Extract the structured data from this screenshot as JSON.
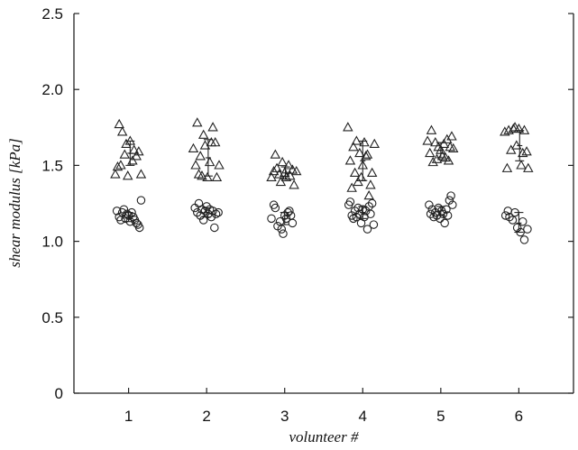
{
  "chart_data": {
    "type": "scatter",
    "xlabel": "volunteer #",
    "ylabel": "shear modulus [kPa]",
    "xlim": [
      0.3,
      6.7
    ],
    "ylim": [
      0,
      2.5
    ],
    "x_ticks": [
      1,
      2,
      3,
      4,
      5,
      6
    ],
    "y_ticks": [
      {
        "value": 0,
        "label": "0"
      },
      {
        "value": 0.5,
        "label": "0.5"
      },
      {
        "value": 1.0,
        "label": "1.0"
      },
      {
        "value": 1.5,
        "label": "1.5"
      },
      {
        "value": 2.0,
        "label": "2.0"
      },
      {
        "value": 2.5,
        "label": "2.5"
      }
    ],
    "grid": false,
    "series": [
      {
        "marker": "triangle",
        "points": [
          {
            "x": 0.83,
            "y": 1.44
          },
          {
            "x": 0.86,
            "y": 1.49
          },
          {
            "x": 0.88,
            "y": 1.77
          },
          {
            "x": 0.9,
            "y": 1.5
          },
          {
            "x": 0.92,
            "y": 1.72
          },
          {
            "x": 0.95,
            "y": 1.57
          },
          {
            "x": 0.97,
            "y": 1.64
          },
          {
            "x": 0.99,
            "y": 1.43
          },
          {
            "x": 1.02,
            "y": 1.66
          },
          {
            "x": 1.05,
            "y": 1.53
          },
          {
            "x": 1.07,
            "y": 1.6
          },
          {
            "x": 1.1,
            "y": 1.56
          },
          {
            "x": 1.13,
            "y": 1.59
          },
          {
            "x": 1.16,
            "y": 1.44
          },
          {
            "x": 1.83,
            "y": 1.61
          },
          {
            "x": 1.86,
            "y": 1.5
          },
          {
            "x": 1.88,
            "y": 1.78
          },
          {
            "x": 1.9,
            "y": 1.44
          },
          {
            "x": 1.92,
            "y": 1.56
          },
          {
            "x": 1.94,
            "y": 1.43
          },
          {
            "x": 1.96,
            "y": 1.7
          },
          {
            "x": 1.98,
            "y": 1.63
          },
          {
            "x": 2.01,
            "y": 1.42
          },
          {
            "x": 2.04,
            "y": 1.52
          },
          {
            "x": 2.06,
            "y": 1.65
          },
          {
            "x": 2.08,
            "y": 1.75
          },
          {
            "x": 2.11,
            "y": 1.65
          },
          {
            "x": 2.13,
            "y": 1.42
          },
          {
            "x": 2.16,
            "y": 1.5
          },
          {
            "x": 2.83,
            "y": 1.42
          },
          {
            "x": 2.86,
            "y": 1.46
          },
          {
            "x": 2.88,
            "y": 1.57
          },
          {
            "x": 2.9,
            "y": 1.48
          },
          {
            "x": 2.93,
            "y": 1.44
          },
          {
            "x": 2.95,
            "y": 1.39
          },
          {
            "x": 2.97,
            "y": 1.52
          },
          {
            "x": 3.0,
            "y": 1.45
          },
          {
            "x": 3.02,
            "y": 1.42
          },
          {
            "x": 3.05,
            "y": 1.5
          },
          {
            "x": 3.07,
            "y": 1.43
          },
          {
            "x": 3.1,
            "y": 1.47
          },
          {
            "x": 3.12,
            "y": 1.37
          },
          {
            "x": 3.15,
            "y": 1.46
          },
          {
            "x": 3.81,
            "y": 1.75
          },
          {
            "x": 3.84,
            "y": 1.53
          },
          {
            "x": 3.86,
            "y": 1.35
          },
          {
            "x": 3.88,
            "y": 1.62
          },
          {
            "x": 3.9,
            "y": 1.45
          },
          {
            "x": 3.92,
            "y": 1.66
          },
          {
            "x": 3.94,
            "y": 1.39
          },
          {
            "x": 3.96,
            "y": 1.58
          },
          {
            "x": 3.98,
            "y": 1.42
          },
          {
            "x": 4.0,
            "y": 1.5
          },
          {
            "x": 4.02,
            "y": 1.65
          },
          {
            "x": 4.04,
            "y": 1.56
          },
          {
            "x": 4.06,
            "y": 1.57
          },
          {
            "x": 4.08,
            "y": 1.3
          },
          {
            "x": 4.1,
            "y": 1.37
          },
          {
            "x": 4.12,
            "y": 1.45
          },
          {
            "x": 4.15,
            "y": 1.64
          },
          {
            "x": 4.83,
            "y": 1.66
          },
          {
            "x": 4.86,
            "y": 1.58
          },
          {
            "x": 4.88,
            "y": 1.73
          },
          {
            "x": 4.9,
            "y": 1.52
          },
          {
            "x": 4.93,
            "y": 1.65
          },
          {
            "x": 4.95,
            "y": 1.54
          },
          {
            "x": 4.97,
            "y": 1.62
          },
          {
            "x": 5.0,
            "y": 1.6
          },
          {
            "x": 5.02,
            "y": 1.56
          },
          {
            "x": 5.04,
            "y": 1.64
          },
          {
            "x": 5.06,
            "y": 1.55
          },
          {
            "x": 5.08,
            "y": 1.67
          },
          {
            "x": 5.1,
            "y": 1.53
          },
          {
            "x": 5.12,
            "y": 1.62
          },
          {
            "x": 5.14,
            "y": 1.69
          },
          {
            "x": 5.16,
            "y": 1.61
          },
          {
            "x": 5.82,
            "y": 1.72
          },
          {
            "x": 5.85,
            "y": 1.48
          },
          {
            "x": 5.87,
            "y": 1.73
          },
          {
            "x": 5.9,
            "y": 1.6
          },
          {
            "x": 5.93,
            "y": 1.74
          },
          {
            "x": 5.95,
            "y": 1.75
          },
          {
            "x": 5.97,
            "y": 1.63
          },
          {
            "x": 6.0,
            "y": 1.74
          },
          {
            "x": 6.03,
            "y": 1.5
          },
          {
            "x": 6.05,
            "y": 1.58
          },
          {
            "x": 6.07,
            "y": 1.73
          },
          {
            "x": 6.1,
            "y": 1.59
          },
          {
            "x": 6.12,
            "y": 1.48
          }
        ],
        "error_bars": [
          {
            "x": 1.02,
            "mean": 1.58,
            "low": 1.5,
            "high": 1.66
          },
          {
            "x": 2.02,
            "mean": 1.55,
            "low": 1.43,
            "high": 1.67
          },
          {
            "x": 3.01,
            "mean": 1.45,
            "low": 1.41,
            "high": 1.49
          },
          {
            "x": 4.0,
            "mean": 1.53,
            "low": 1.4,
            "high": 1.66
          },
          {
            "x": 5.0,
            "mean": 1.6,
            "low": 1.55,
            "high": 1.65
          },
          {
            "x": 6.01,
            "mean": 1.63,
            "low": 1.53,
            "high": 1.73
          }
        ]
      },
      {
        "marker": "circle",
        "points": [
          {
            "x": 0.85,
            "y": 1.2
          },
          {
            "x": 0.88,
            "y": 1.16
          },
          {
            "x": 0.9,
            "y": 1.14
          },
          {
            "x": 0.92,
            "y": 1.19
          },
          {
            "x": 0.94,
            "y": 1.21
          },
          {
            "x": 0.96,
            "y": 1.15
          },
          {
            "x": 0.98,
            "y": 1.18
          },
          {
            "x": 1.0,
            "y": 1.17
          },
          {
            "x": 1.02,
            "y": 1.13
          },
          {
            "x": 1.04,
            "y": 1.19
          },
          {
            "x": 1.06,
            "y": 1.16
          },
          {
            "x": 1.08,
            "y": 1.14
          },
          {
            "x": 1.1,
            "y": 1.12
          },
          {
            "x": 1.12,
            "y": 1.11
          },
          {
            "x": 1.14,
            "y": 1.09
          },
          {
            "x": 1.16,
            "y": 1.27
          },
          {
            "x": 1.85,
            "y": 1.22
          },
          {
            "x": 1.88,
            "y": 1.19
          },
          {
            "x": 1.9,
            "y": 1.25
          },
          {
            "x": 1.92,
            "y": 1.17
          },
          {
            "x": 1.94,
            "y": 1.21
          },
          {
            "x": 1.96,
            "y": 1.14
          },
          {
            "x": 1.98,
            "y": 1.2
          },
          {
            "x": 2.0,
            "y": 1.23
          },
          {
            "x": 2.02,
            "y": 1.18
          },
          {
            "x": 2.04,
            "y": 1.21
          },
          {
            "x": 2.06,
            "y": 1.16
          },
          {
            "x": 2.08,
            "y": 1.2
          },
          {
            "x": 2.1,
            "y": 1.09
          },
          {
            "x": 2.12,
            "y": 1.18
          },
          {
            "x": 2.15,
            "y": 1.19
          },
          {
            "x": 2.83,
            "y": 1.15
          },
          {
            "x": 2.86,
            "y": 1.24
          },
          {
            "x": 2.88,
            "y": 1.22
          },
          {
            "x": 2.91,
            "y": 1.1
          },
          {
            "x": 2.94,
            "y": 1.13
          },
          {
            "x": 2.96,
            "y": 1.08
          },
          {
            "x": 2.98,
            "y": 1.05
          },
          {
            "x": 3.0,
            "y": 1.17
          },
          {
            "x": 3.02,
            "y": 1.15
          },
          {
            "x": 3.04,
            "y": 1.19
          },
          {
            "x": 3.06,
            "y": 1.2
          },
          {
            "x": 3.08,
            "y": 1.17
          },
          {
            "x": 3.1,
            "y": 1.12
          },
          {
            "x": 3.82,
            "y": 1.24
          },
          {
            "x": 3.84,
            "y": 1.26
          },
          {
            "x": 3.86,
            "y": 1.17
          },
          {
            "x": 3.88,
            "y": 1.15
          },
          {
            "x": 3.9,
            "y": 1.2
          },
          {
            "x": 3.92,
            "y": 1.16
          },
          {
            "x": 3.94,
            "y": 1.22
          },
          {
            "x": 3.96,
            "y": 1.18
          },
          {
            "x": 3.98,
            "y": 1.12
          },
          {
            "x": 4.0,
            "y": 1.21
          },
          {
            "x": 4.02,
            "y": 1.16
          },
          {
            "x": 4.04,
            "y": 1.2
          },
          {
            "x": 4.06,
            "y": 1.08
          },
          {
            "x": 4.08,
            "y": 1.23
          },
          {
            "x": 4.1,
            "y": 1.18
          },
          {
            "x": 4.12,
            "y": 1.25
          },
          {
            "x": 4.14,
            "y": 1.11
          },
          {
            "x": 4.85,
            "y": 1.24
          },
          {
            "x": 4.87,
            "y": 1.18
          },
          {
            "x": 4.89,
            "y": 1.21
          },
          {
            "x": 4.91,
            "y": 1.16
          },
          {
            "x": 4.93,
            "y": 1.19
          },
          {
            "x": 4.95,
            "y": 1.17
          },
          {
            "x": 4.97,
            "y": 1.22
          },
          {
            "x": 4.99,
            "y": 1.15
          },
          {
            "x": 5.01,
            "y": 1.2
          },
          {
            "x": 5.03,
            "y": 1.18
          },
          {
            "x": 5.05,
            "y": 1.12
          },
          {
            "x": 5.07,
            "y": 1.21
          },
          {
            "x": 5.09,
            "y": 1.17
          },
          {
            "x": 5.11,
            "y": 1.27
          },
          {
            "x": 5.13,
            "y": 1.3
          },
          {
            "x": 5.15,
            "y": 1.24
          },
          {
            "x": 5.83,
            "y": 1.17
          },
          {
            "x": 5.86,
            "y": 1.2
          },
          {
            "x": 5.88,
            "y": 1.16
          },
          {
            "x": 5.92,
            "y": 1.14
          },
          {
            "x": 5.95,
            "y": 1.19
          },
          {
            "x": 5.98,
            "y": 1.09
          },
          {
            "x": 6.02,
            "y": 1.06
          },
          {
            "x": 6.05,
            "y": 1.13
          },
          {
            "x": 6.07,
            "y": 1.01
          },
          {
            "x": 6.11,
            "y": 1.08
          }
        ],
        "error_bars": [
          {
            "x": 1.0,
            "mean": 1.16,
            "low": 1.13,
            "high": 1.19
          },
          {
            "x": 2.0,
            "mean": 1.19,
            "low": 1.16,
            "high": 1.22
          },
          {
            "x": 3.0,
            "mean": 1.15,
            "low": 1.11,
            "high": 1.19
          },
          {
            "x": 4.0,
            "mean": 1.19,
            "low": 1.15,
            "high": 1.23
          },
          {
            "x": 5.0,
            "mean": 1.2,
            "low": 1.17,
            "high": 1.23
          },
          {
            "x": 6.0,
            "mean": 1.12,
            "low": 1.06,
            "high": 1.19
          }
        ]
      }
    ]
  }
}
